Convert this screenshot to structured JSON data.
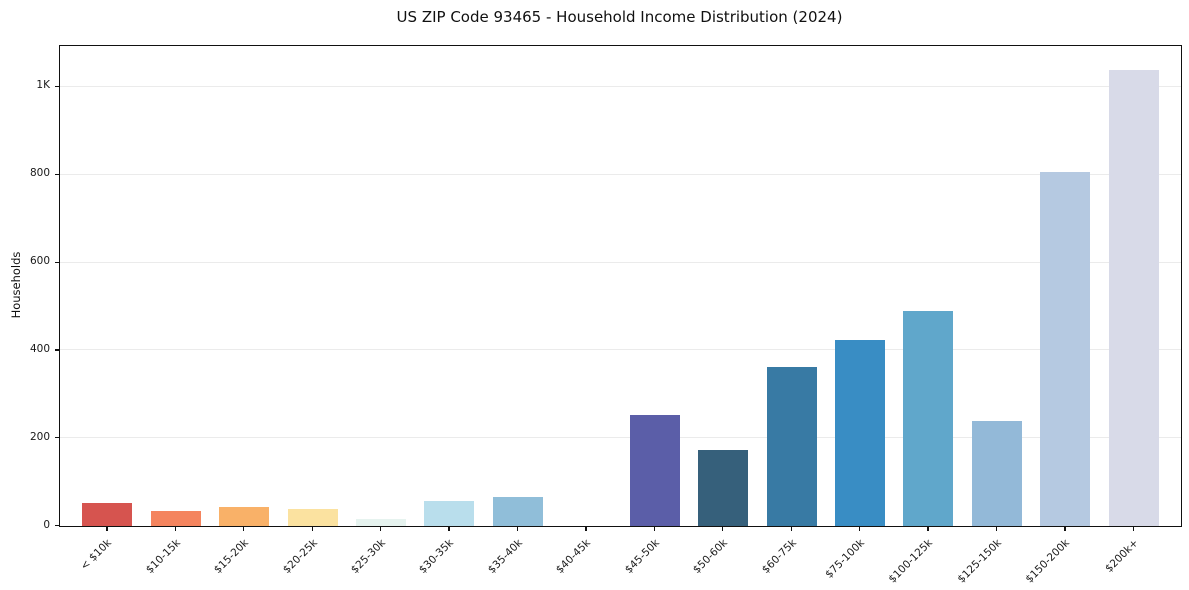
{
  "chart_data": {
    "type": "bar",
    "title": "US ZIP Code 93465 - Household Income Distribution (2024)",
    "xlabel": "",
    "ylabel": "Households",
    "categories": [
      "< $10k",
      "$10-15k",
      "$15-20k",
      "$20-25k",
      "$25-30k",
      "$30-35k",
      "$35-40k",
      "$40-45k",
      "$45-50k",
      "$50-60k",
      "$60-75k",
      "$75-100k",
      "$100-125k",
      "$125-150k",
      "$150-200k",
      "$200k+"
    ],
    "values": [
      52,
      35,
      44,
      39,
      16,
      58,
      67,
      0,
      253,
      172,
      362,
      423,
      489,
      238,
      805,
      1038
    ],
    "bar_colors": [
      "#d6544f",
      "#f4845e",
      "#f9b168",
      "#fbe2a0",
      "#e6f3ef",
      "#b9deec",
      "#90bed9",
      null,
      "#5b5ea8",
      "#36607b",
      "#387aa4",
      "#398dc4",
      "#60a7cb",
      "#93b9d8",
      "#b5c9e1",
      "#d8dae8"
    ],
    "yticks": [
      {
        "value": 0,
        "label": "0"
      },
      {
        "value": 200,
        "label": "200"
      },
      {
        "value": 400,
        "label": "400"
      },
      {
        "value": 600,
        "label": "600"
      },
      {
        "value": 800,
        "label": "800"
      },
      {
        "value": 1000,
        "label": "1K"
      }
    ],
    "ylim": [
      0,
      1093
    ],
    "grid": "horizontal-only",
    "legend": "none",
    "plot_border": "full-box"
  }
}
